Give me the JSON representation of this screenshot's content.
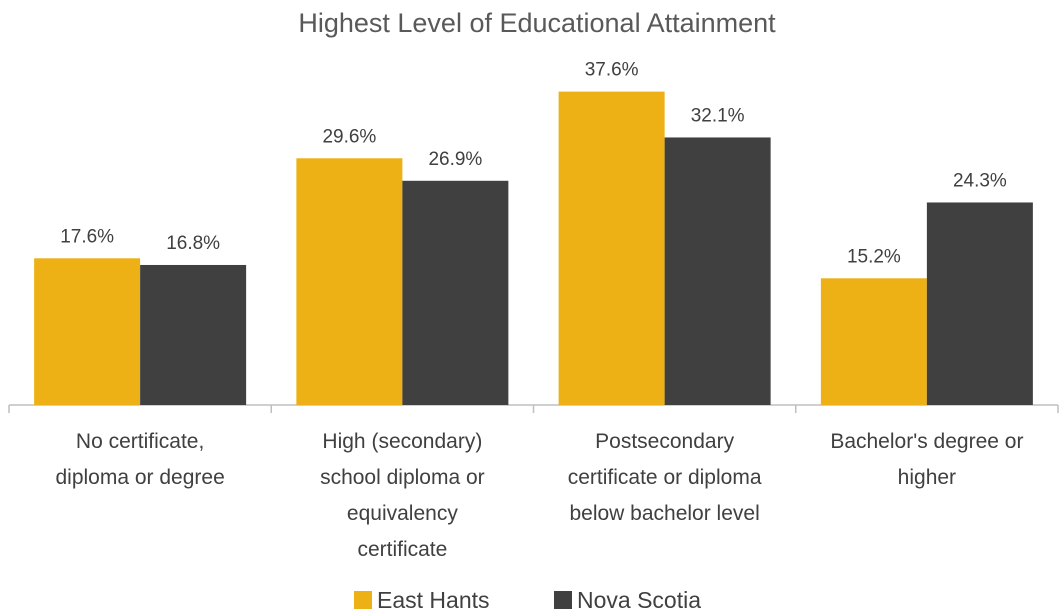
{
  "chart_data": {
    "type": "bar",
    "title": "Highest Level of Educational Attainment",
    "xlabel": "",
    "ylabel": "",
    "categories": [
      [
        "No certificate,",
        "diploma or degree"
      ],
      [
        "High (secondary)",
        "school diploma or",
        "equivalency",
        "certificate"
      ],
      [
        "Postsecondary",
        "certificate or diploma",
        "below bachelor level"
      ],
      [
        "Bachelor's degree or",
        "higher"
      ]
    ],
    "series": [
      {
        "name": "East Hants",
        "values": [
          17.6,
          29.6,
          37.6,
          15.2
        ],
        "labels": [
          "17.6%",
          "29.6%",
          "37.6%",
          "15.2%"
        ],
        "color": "#EDB015"
      },
      {
        "name": "Nova Scotia",
        "values": [
          16.8,
          26.9,
          32.1,
          24.3
        ],
        "labels": [
          "16.8%",
          "26.9%",
          "32.1%",
          "24.3%"
        ],
        "color": "#404040"
      }
    ],
    "ylim": [
      0,
      40
    ],
    "grid": false,
    "legend_position": "bottom"
  }
}
